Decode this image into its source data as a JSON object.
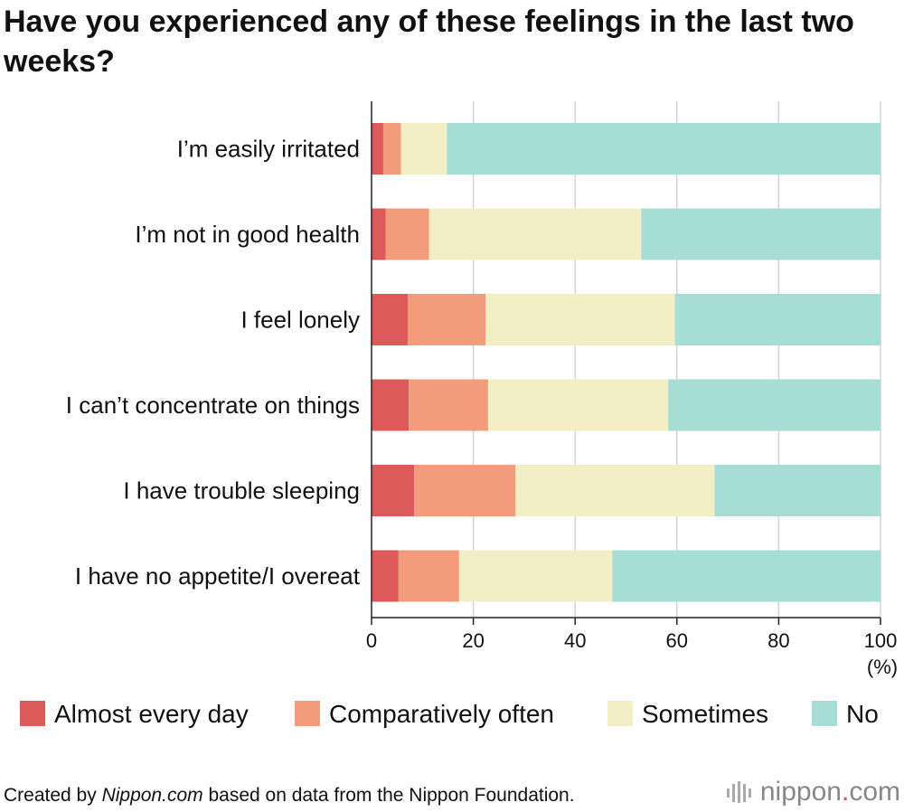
{
  "chart_data": {
    "type": "bar",
    "orientation": "horizontal",
    "stacked": true,
    "title": "Have you experienced any of these feelings in the last two weeks?",
    "unit_label": "(%)",
    "categories": [
      "I’m easily irritated",
      "I’m not in good health",
      "I feel lonely",
      "I can’t concentrate on things",
      "I have trouble sleeping",
      "I have no appetite/I overeat"
    ],
    "series": [
      {
        "name": "Almost every day",
        "color": "#dc5a5a",
        "values": [
          2.3,
          2.8,
          7.1,
          7.3,
          8.4,
          5.3
        ]
      },
      {
        "name": "Comparatively often",
        "color": "#f29c7c",
        "values": [
          3.5,
          8.5,
          15.3,
          15.6,
          19.9,
          11.9
        ]
      },
      {
        "name": "Sometimes",
        "color": "#f2efc6",
        "values": [
          9.0,
          41.7,
          37.2,
          35.4,
          39.1,
          30.1
        ]
      },
      {
        "name": "No",
        "color": "#a6ddd4",
        "values": [
          85.2,
          47.0,
          40.4,
          41.7,
          32.6,
          52.7
        ]
      }
    ],
    "xlim": [
      0,
      100
    ],
    "xticks": [
      0,
      20,
      40,
      60,
      80,
      100
    ],
    "grid": true,
    "legend_position": "bottom"
  },
  "footer": {
    "prefix": "Created by ",
    "source_site": "Nippon.com",
    "suffix": " based on data from the Nippon Foundation."
  },
  "brand": {
    "name": "nippon",
    "dot": ".",
    "tld": "com"
  }
}
